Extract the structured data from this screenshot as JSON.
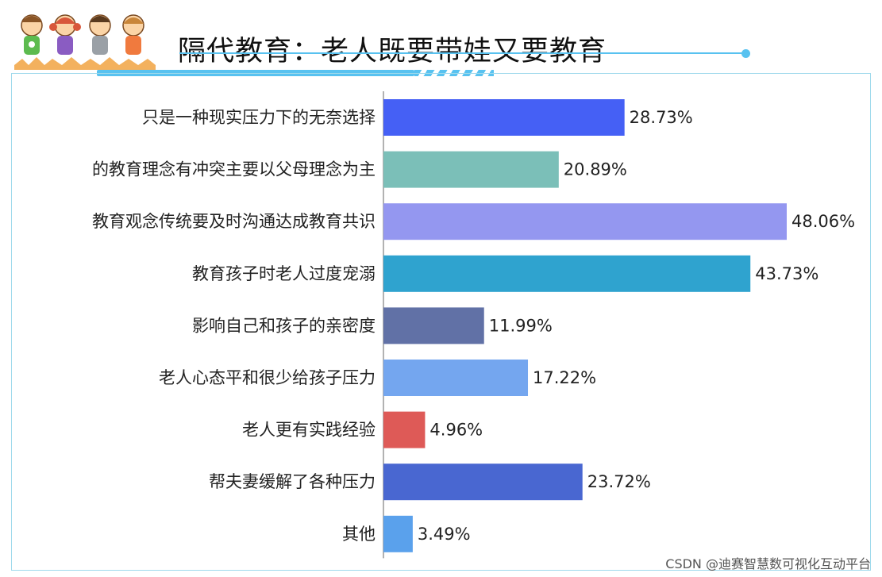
{
  "title": "隔代教育：老人既要带娃又要教育",
  "watermark": "CSDN @迪赛智慧数可视化互动平台",
  "chart_data": {
    "type": "bar",
    "orientation": "horizontal",
    "categories": [
      "只是一种现实压力下的无奈选择",
      "的教育理念有冲突主要以父母理念为主",
      "教育观念传统要及时沟通达成教育共识",
      "教育孩子时老人过度宠溺",
      "影响自己和孩子的亲密度",
      "老人心态平和很少给孩子压力",
      "老人更有实践经验",
      "帮夫妻缓解了各种压力",
      "其他"
    ],
    "values": [
      28.73,
      20.89,
      48.06,
      43.73,
      11.99,
      17.22,
      4.96,
      23.72,
      3.49
    ],
    "value_labels": [
      "28.73%",
      "20.89%",
      "48.06%",
      "43.73%",
      "11.99%",
      "17.22%",
      "4.96%",
      "23.72%",
      "3.49%"
    ],
    "colors": [
      "#4560f5",
      "#7bbfb8",
      "#9497f0",
      "#2fa3cf",
      "#6171a6",
      "#74a6ef",
      "#de5a57",
      "#4967d1",
      "#5aa1ec"
    ],
    "xlim": [
      0,
      48.06
    ],
    "grid": false,
    "legend": "none"
  }
}
